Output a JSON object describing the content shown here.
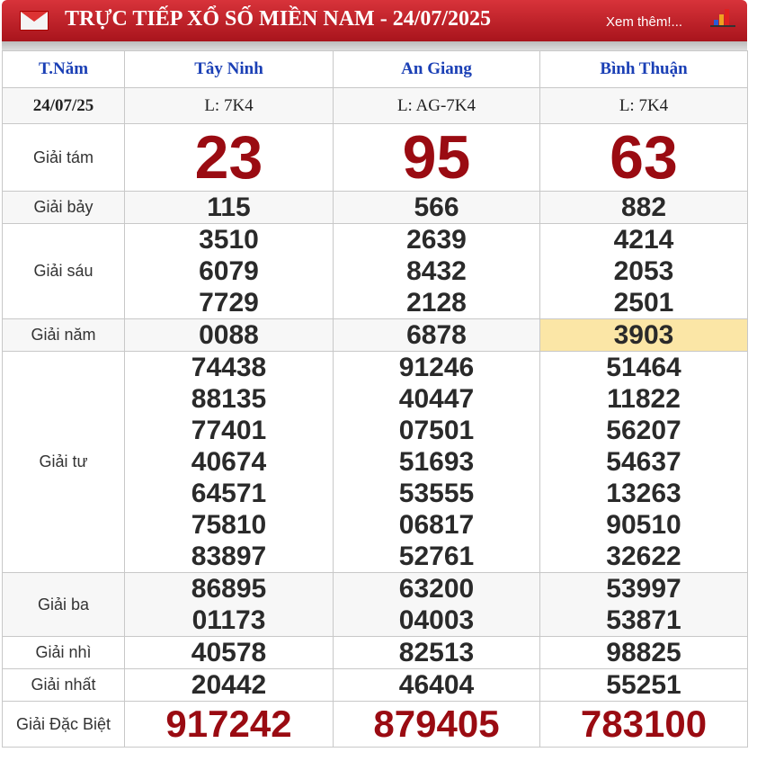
{
  "header": {
    "title": "TRỰC TIẾP XỔ SỐ MIỀN NAM - 24/07/2025",
    "more_link": "Xem thêm!...",
    "icons": [
      "mail-icon",
      "bar-chart-icon"
    ]
  },
  "table": {
    "columns": [
      "T.Năm",
      "Tây Ninh",
      "An Giang",
      "Bình Thuận"
    ],
    "date": "24/07/25",
    "codes": [
      "L: 7K4",
      "L: AG-7K4",
      "L: 7K4"
    ],
    "highlight_color": "#fbe6a6",
    "prizes": [
      {
        "label": "Giải tám",
        "style": "big",
        "values": [
          [
            "23"
          ],
          [
            "95"
          ],
          [
            "63"
          ]
        ]
      },
      {
        "label": "Giải bảy",
        "style": "num",
        "alt": true,
        "values": [
          [
            "115"
          ],
          [
            "566"
          ],
          [
            "882"
          ]
        ]
      },
      {
        "label": "Giải sáu",
        "style": "num",
        "values": [
          [
            "3510",
            "6079",
            "7729"
          ],
          [
            "2639",
            "8432",
            "2128"
          ],
          [
            "4214",
            "2053",
            "2501"
          ]
        ]
      },
      {
        "label": "Giải năm",
        "style": "num",
        "alt": true,
        "highlight": 2,
        "values": [
          [
            "0088"
          ],
          [
            "6878"
          ],
          [
            "3903"
          ]
        ]
      },
      {
        "label": "Giải tư",
        "style": "num",
        "values": [
          [
            "74438",
            "88135",
            "77401",
            "40674",
            "64571",
            "75810",
            "83897"
          ],
          [
            "91246",
            "40447",
            "07501",
            "51693",
            "53555",
            "06817",
            "52761"
          ],
          [
            "51464",
            "11822",
            "56207",
            "54637",
            "13263",
            "90510",
            "32622"
          ]
        ]
      },
      {
        "label": "Giải ba",
        "style": "num",
        "alt": true,
        "values": [
          [
            "86895",
            "01173"
          ],
          [
            "63200",
            "04003"
          ],
          [
            "53997",
            "53871"
          ]
        ]
      },
      {
        "label": "Giải nhì",
        "style": "num",
        "values": [
          [
            "40578"
          ],
          [
            "82513"
          ],
          [
            "98825"
          ]
        ]
      },
      {
        "label": "Giải nhất",
        "style": "num",
        "values": [
          [
            "20442"
          ],
          [
            "46404"
          ],
          [
            "55251"
          ]
        ]
      },
      {
        "label": "Giải Đặc Biệt",
        "style": "db",
        "values": [
          [
            "917242"
          ],
          [
            "879405"
          ],
          [
            "783100"
          ]
        ]
      }
    ]
  }
}
